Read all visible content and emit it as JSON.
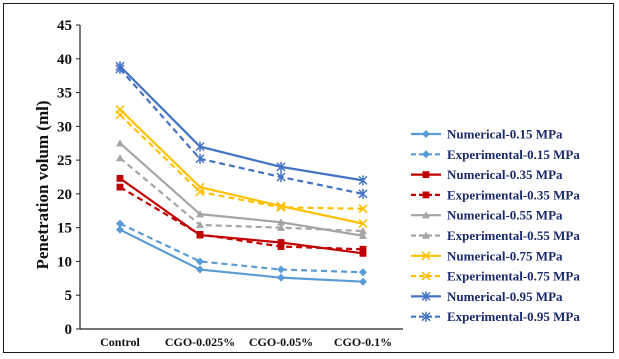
{
  "chart_data": {
    "type": "line",
    "title": "",
    "xlabel": "",
    "ylabel": "Penetration volum (ml)",
    "ylim": [
      0,
      45
    ],
    "yticks": [
      0,
      5,
      10,
      15,
      20,
      25,
      30,
      35,
      40,
      45
    ],
    "grid": false,
    "legend_position": "right",
    "categories": [
      "Control",
      "CGO-0.025%",
      "CGO-0.05%",
      "CGO-0.1%"
    ],
    "series": [
      {
        "name": "Numerical-0.15 MPa",
        "values": [
          14.7,
          8.8,
          7.6,
          7.0
        ],
        "color": "#5b9bd5",
        "dash": "solid",
        "marker": "diamond"
      },
      {
        "name": "Experimental-0.15 MPa",
        "values": [
          15.6,
          10.0,
          8.8,
          8.4
        ],
        "color": "#5b9bd5",
        "dash": "dashed",
        "marker": "diamond"
      },
      {
        "name": "Numerical-0.35 MPa",
        "values": [
          22.3,
          13.9,
          12.8,
          11.2
        ],
        "color": "#c00000",
        "dash": "solid",
        "marker": "square"
      },
      {
        "name": "Experimental-0.35 MPa",
        "values": [
          21.0,
          14.0,
          12.2,
          11.8
        ],
        "color": "#c00000",
        "dash": "dashed",
        "marker": "square"
      },
      {
        "name": "Numerical-0.55 MPa",
        "values": [
          27.5,
          17.0,
          15.8,
          13.8
        ],
        "color": "#a5a5a5",
        "dash": "solid",
        "marker": "triangle"
      },
      {
        "name": "Experimental-0.55 MPa",
        "values": [
          25.3,
          15.4,
          15.0,
          14.5
        ],
        "color": "#a5a5a5",
        "dash": "dashed",
        "marker": "triangle"
      },
      {
        "name": "Numerical-0.75 MPa",
        "values": [
          32.5,
          21.0,
          18.2,
          15.6
        ],
        "color": "#ffc000",
        "dash": "solid",
        "marker": "x"
      },
      {
        "name": "Experimental-0.75 MPa",
        "values": [
          31.7,
          20.3,
          18.0,
          17.8
        ],
        "color": "#ffc000",
        "dash": "dashed",
        "marker": "x"
      },
      {
        "name": "Numerical-0.95 MPa",
        "values": [
          38.9,
          27.0,
          24.0,
          22.0
        ],
        "color": "#4472c4",
        "dash": "solid",
        "marker": "star"
      },
      {
        "name": "Experimental-0.95 MPa",
        "values": [
          38.5,
          25.2,
          22.5,
          20.0
        ],
        "color": "#4472c4",
        "dash": "dashed",
        "marker": "star"
      }
    ]
  }
}
